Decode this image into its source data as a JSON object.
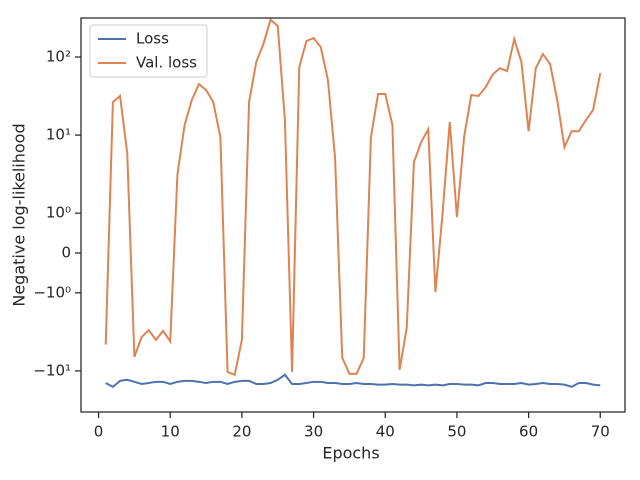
{
  "chart_data": {
    "type": "line",
    "xlabel": "Epochs",
    "ylabel": "Negative log-likelihood",
    "yscale": "symlog",
    "linthresh": 1,
    "legend": "upper left",
    "grid": false,
    "x": [
      1,
      2,
      3,
      4,
      5,
      6,
      7,
      8,
      9,
      10,
      11,
      12,
      13,
      14,
      15,
      16,
      17,
      18,
      19,
      20,
      21,
      22,
      23,
      24,
      25,
      26,
      27,
      28,
      29,
      30,
      31,
      32,
      33,
      34,
      35,
      36,
      37,
      38,
      39,
      40,
      41,
      42,
      43,
      44,
      45,
      46,
      47,
      48,
      49,
      50,
      51,
      52,
      53,
      54,
      55,
      56,
      57,
      58,
      59,
      60,
      61,
      62,
      63,
      64,
      65,
      66,
      67,
      68,
      69,
      70
    ],
    "series": [
      {
        "name": "Loss",
        "color": "#4c72b0",
        "values": [
          -14.3,
          -16,
          -13.4,
          -13,
          -13.8,
          -14.7,
          -14.3,
          -13.8,
          -13.8,
          -14.7,
          -13.8,
          -13.4,
          -13.4,
          -13.8,
          -14.3,
          -13.8,
          -13.8,
          -14.7,
          -13.8,
          -13.4,
          -13.4,
          -14.7,
          -14.7,
          -14.3,
          -13,
          -11.2,
          -14.7,
          -14.7,
          -14.3,
          -13.8,
          -13.8,
          -14.3,
          -14.3,
          -14.7,
          -14.7,
          -14.3,
          -14.7,
          -14.7,
          -15,
          -15,
          -14.7,
          -15,
          -15,
          -15.3,
          -15,
          -15.3,
          -15,
          -15.3,
          -14.7,
          -14.7,
          -15,
          -15,
          -15.3,
          -14.3,
          -14.3,
          -14.7,
          -14.7,
          -14.7,
          -14.3,
          -15,
          -14.7,
          -14.3,
          -14.7,
          -14.7,
          -15,
          -16,
          -14.3,
          -14.3,
          -15,
          -15.3
        ]
      },
      {
        "name": "Val. loss",
        "color": "#dd8452",
        "values": [
          -4.6,
          26.5,
          31.7,
          5.9,
          -6.6,
          -3.7,
          -3.0,
          -4.0,
          -3.07,
          -4.2,
          3.1,
          13.4,
          28,
          45,
          37.8,
          26.5,
          9.4,
          -10.3,
          -11.2,
          -4.0,
          26.5,
          86,
          147,
          300,
          250,
          15.6,
          -10.3,
          74,
          160,
          175,
          134,
          51,
          5.1,
          -6.8,
          -10.9,
          -10.9,
          -6.8,
          9.4,
          33.6,
          33.6,
          13.4,
          -9.7,
          -2.8,
          4.5,
          8.1,
          11.9,
          -0.98,
          1.0,
          14.7,
          0.9,
          9.4,
          32.6,
          31.7,
          41,
          60,
          72,
          66,
          170,
          86,
          11.2,
          72,
          109,
          81,
          28,
          7.0,
          11.2,
          11.2,
          15.6,
          21,
          62
        ]
      }
    ],
    "xlim": [
      -2.45,
      73.45
    ],
    "xticks": [
      0,
      10,
      20,
      30,
      40,
      50,
      60,
      70
    ],
    "ylim": [
      -33.6,
      316
    ],
    "yticks": [
      {
        "value": -10,
        "label": "−10¹"
      },
      {
        "value": -1,
        "label": "−10⁰"
      },
      0,
      {
        "value": 1,
        "label": "10⁰"
      },
      {
        "value": 10,
        "label": "10¹"
      },
      {
        "value": 100,
        "label": "10²"
      }
    ]
  }
}
